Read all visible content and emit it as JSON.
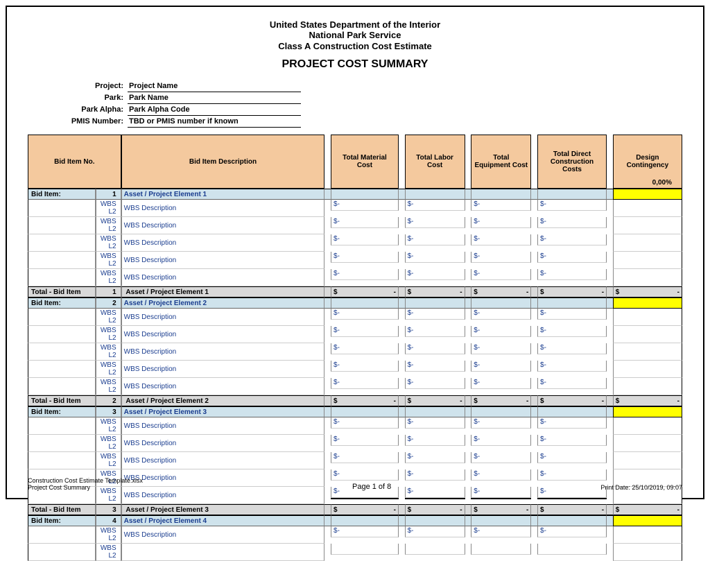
{
  "header": {
    "line1": "United States Department of the Interior",
    "line2": "National Park Service",
    "line3": "Class A Construction Cost Estimate",
    "title": "PROJECT COST SUMMARY"
  },
  "meta": {
    "project_label": "Project:",
    "project_value": "Project Name",
    "park_label": "Park:",
    "park_value": "Park Name",
    "park_alpha_label": "Park Alpha:",
    "park_alpha_value": "Park Alpha Code",
    "pmis_label": "PMIS Number:",
    "pmis_value": "TBD or PMIS number if known"
  },
  "columns": {
    "bid_item_no": "Bid Item No.",
    "bid_item_desc": "Bid Item Description",
    "total_material": "Total Material Cost",
    "total_labor": "Total Labor Cost",
    "total_equipment": "Total Equipment Cost",
    "total_direct": "Total Direct Construction Costs",
    "design_contingency": "Design Contingency",
    "dc_pct": "0,00%"
  },
  "bid_item_label": "Bid Item:",
  "total_bid_label": "Total - Bid Item",
  "wbs_l2": "WBS L2",
  "wbs_desc": "WBS Description",
  "dollar": "$",
  "dash": "-",
  "items": [
    {
      "num": "1",
      "asset": "Asset / Project Element 1",
      "rows": 5
    },
    {
      "num": "2",
      "asset": "Asset / Project Element 2",
      "rows": 5
    },
    {
      "num": "3",
      "asset": "Asset / Project Element 3",
      "rows": 5
    },
    {
      "num": "4",
      "asset": "Asset / Project Element 4",
      "rows": 2
    }
  ],
  "footer": {
    "file": "Construction Cost Estimate Template.xlsx",
    "sheet": "Project Cost Summary",
    "page": "Page 1 of 8",
    "print": "Print Date: 25/10/2019, 09:07"
  },
  "colors": {
    "header_bg": "#f4c99e",
    "bid_row_bg": "#cfe3ec",
    "total_row_bg": "#d9d9d9",
    "yellow": "#ffff00",
    "link_blue": "#1a3d8f"
  }
}
